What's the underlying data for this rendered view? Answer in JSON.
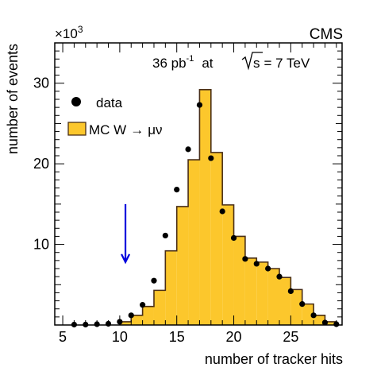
{
  "chart_data": {
    "type": "bar",
    "experiment_label": "CMS",
    "luminosity_label": "36 pb",
    "luminosity_exponent": "-1",
    "energy_at": "at",
    "energy_symbol": "s",
    "energy_value": "= 7 TeV",
    "multiplier_prefix": "×10",
    "multiplier_exponent": "3",
    "xlabel": "number of tracker hits",
    "ylabel": "number of events",
    "xlim": [
      4.3,
      29.5
    ],
    "ylim": [
      0,
      35
    ],
    "x_ticks": [
      5,
      10,
      15,
      20,
      25
    ],
    "y_ticks": [
      10,
      20,
      30
    ],
    "legend": {
      "position": "top-left",
      "data_label": "data",
      "mc_label_prefix": "MC W",
      "mc_label_arrow": "→",
      "mc_label_suffix": "μν"
    },
    "colors": {
      "mc_fill": "#fcc72c",
      "mc_line": "#4a2f17",
      "arrow": "#0000dd",
      "data": "#000000"
    },
    "bin_width": 1,
    "mc_bin_lows": [
      10,
      11,
      12,
      13,
      14,
      15,
      16,
      17,
      18,
      19,
      20,
      21,
      22,
      23,
      24,
      25,
      26,
      27,
      28
    ],
    "mc_values": [
      0.4,
      1.2,
      2.3,
      4.3,
      9.2,
      14.7,
      20.5,
      29.2,
      21.4,
      14.9,
      11.0,
      8.3,
      7.8,
      7.0,
      5.9,
      4.4,
      2.6,
      1.2,
      0.4
    ],
    "series": [
      {
        "name": "data",
        "x": [
          6,
          7,
          8,
          9,
          10,
          11,
          12,
          13,
          14,
          15,
          16,
          17,
          18,
          19,
          20,
          21,
          22,
          23,
          24,
          25,
          26,
          27,
          28,
          29
        ],
        "values": [
          0.05,
          0.05,
          0.1,
          0.15,
          0.4,
          1.2,
          2.5,
          5.5,
          11.1,
          16.8,
          21.8,
          27.3,
          20.7,
          14.1,
          10.8,
          8.2,
          7.6,
          7.0,
          6.0,
          4.2,
          2.6,
          1.2,
          0.3,
          0.1
        ]
      }
    ],
    "arrow_x": 10.5,
    "arrow_from_y": 15.0,
    "arrow_to_y": 7.8
  }
}
